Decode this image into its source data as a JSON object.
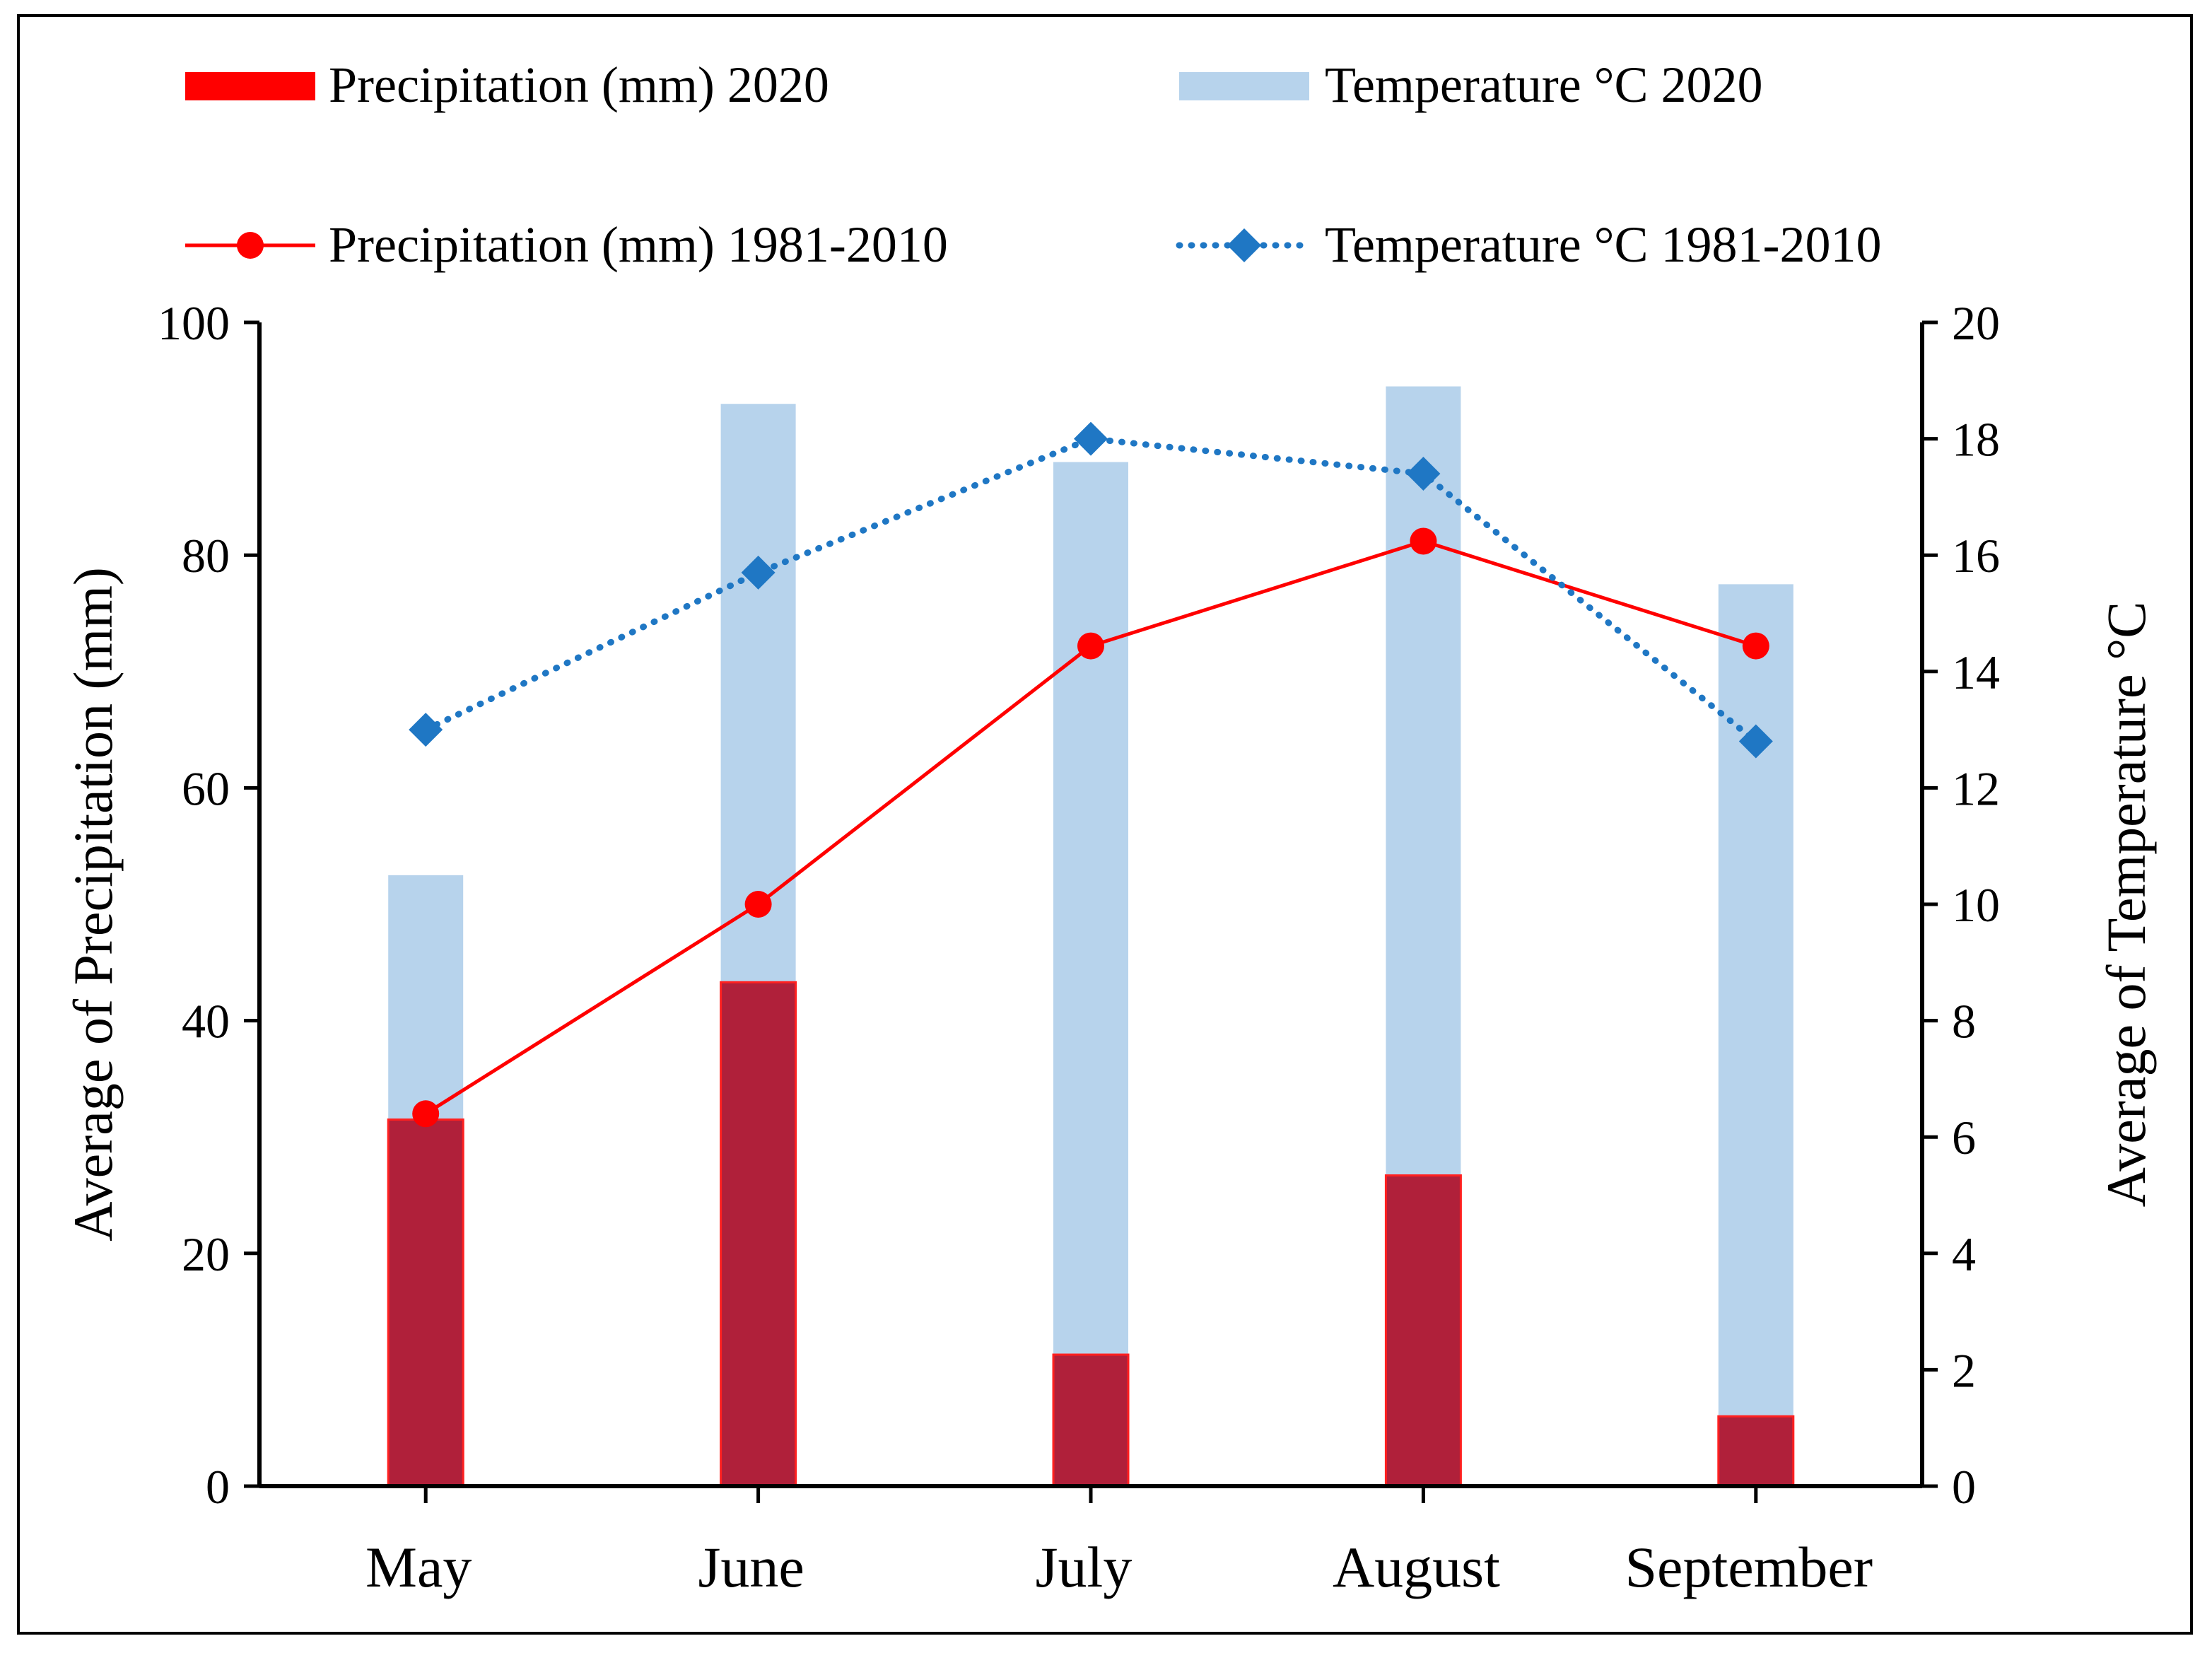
{
  "chart_data": {
    "type": "bar",
    "categories": [
      "May",
      "June",
      "July",
      "August",
      "September"
    ],
    "series": [
      {
        "name": "Precipitation (mm) 2020",
        "kind": "bar",
        "axis": "left",
        "color": "#b0203a",
        "values": [
          31.5,
          43.3,
          11.3,
          26.7,
          6.0
        ]
      },
      {
        "name": "Temperature °C   2020",
        "kind": "bar",
        "axis": "right",
        "color": "#b7d3ec",
        "values": [
          10.5,
          18.6,
          17.6,
          18.9,
          15.5
        ]
      },
      {
        "name": "Precipitation (mm)  1981-2010",
        "kind": "line",
        "axis": "left",
        "color": "#ff0000",
        "marker": "circle",
        "values": [
          32.0,
          50.0,
          72.2,
          81.2,
          72.2
        ]
      },
      {
        "name": "Temperature °C    1981-2010",
        "kind": "line",
        "axis": "right",
        "color": "#1f77c4",
        "marker": "diamond",
        "dotted": true,
        "values": [
          13.0,
          15.7,
          18.0,
          17.4,
          12.8
        ]
      }
    ],
    "ylabel": "Average of Precipitation (mm)",
    "ylabel_right": "Average of Temperature °C",
    "ylim": [
      0,
      100
    ],
    "ylim_right": [
      0,
      20
    ],
    "yticks": [
      "0",
      "20",
      "40",
      "60",
      "80",
      "100"
    ],
    "yticks_right": [
      "0",
      "2",
      "4",
      "6",
      "8",
      "10",
      "12",
      "14",
      "16",
      "18",
      "20"
    ],
    "legend": "top",
    "grid": false
  }
}
